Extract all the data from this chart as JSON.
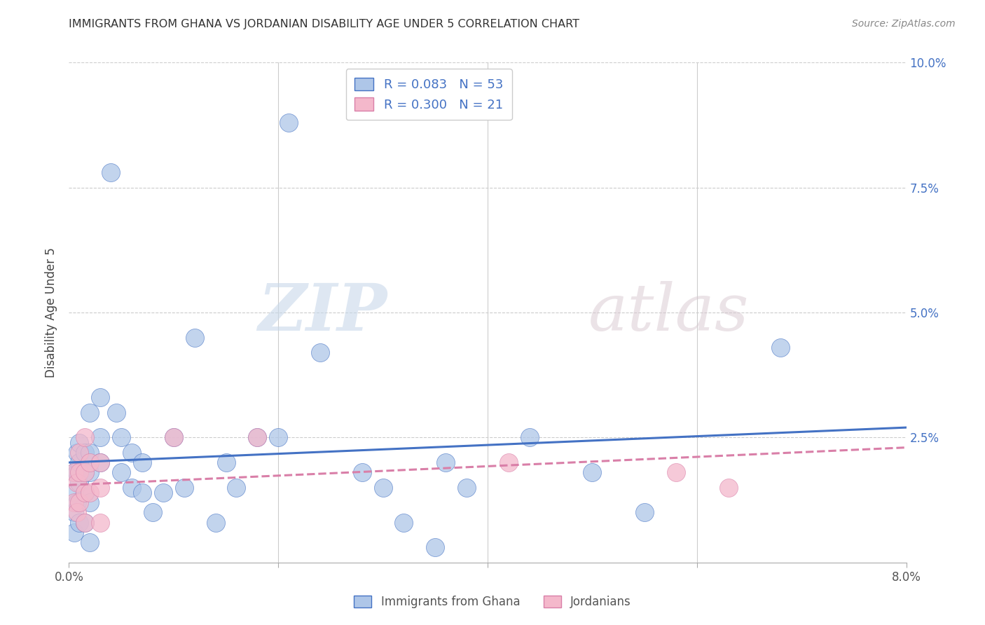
{
  "title": "IMMIGRANTS FROM GHANA VS JORDANIAN DISABILITY AGE UNDER 5 CORRELATION CHART",
  "source": "Source: ZipAtlas.com",
  "ylabel": "Disability Age Under 5",
  "xlim": [
    0.0,
    0.08
  ],
  "ylim": [
    0.0,
    0.1
  ],
  "xticks": [
    0.0,
    0.02,
    0.04,
    0.06,
    0.08
  ],
  "xtick_labels": [
    "0.0%",
    "",
    "",
    "",
    "8.0%"
  ],
  "yticks": [
    0.0,
    0.025,
    0.05,
    0.075,
    0.1
  ],
  "ytick_labels": [
    "",
    "2.5%",
    "5.0%",
    "7.5%",
    "10.0%"
  ],
  "ghana_color": "#aec6e8",
  "jordan_color": "#f4b8cb",
  "ghana_line_color": "#4472c4",
  "jordan_line_color": "#d97fa8",
  "ghana_R": 0.083,
  "ghana_N": 53,
  "jordan_R": 0.3,
  "jordan_N": 21,
  "watermark_zip": "ZIP",
  "watermark_atlas": "atlas",
  "ghana_line_x": [
    0.0,
    0.08
  ],
  "ghana_line_y": [
    0.02,
    0.027
  ],
  "jordan_line_x": [
    0.0,
    0.08
  ],
  "jordan_line_y": [
    0.0155,
    0.023
  ],
  "ghana_points": [
    [
      0.0005,
      0.006
    ],
    [
      0.0005,
      0.01
    ],
    [
      0.0005,
      0.014
    ],
    [
      0.0005,
      0.018
    ],
    [
      0.0008,
      0.022
    ],
    [
      0.0008,
      0.018
    ],
    [
      0.0008,
      0.012
    ],
    [
      0.001,
      0.02
    ],
    [
      0.001,
      0.016
    ],
    [
      0.001,
      0.024
    ],
    [
      0.001,
      0.008
    ],
    [
      0.0015,
      0.022
    ],
    [
      0.0015,
      0.018
    ],
    [
      0.0015,
      0.014
    ],
    [
      0.0015,
      0.008
    ],
    [
      0.002,
      0.03
    ],
    [
      0.002,
      0.022
    ],
    [
      0.002,
      0.018
    ],
    [
      0.002,
      0.012
    ],
    [
      0.002,
      0.004
    ],
    [
      0.003,
      0.033
    ],
    [
      0.003,
      0.025
    ],
    [
      0.003,
      0.02
    ],
    [
      0.004,
      0.078
    ],
    [
      0.0045,
      0.03
    ],
    [
      0.005,
      0.025
    ],
    [
      0.005,
      0.018
    ],
    [
      0.006,
      0.022
    ],
    [
      0.006,
      0.015
    ],
    [
      0.007,
      0.02
    ],
    [
      0.007,
      0.014
    ],
    [
      0.008,
      0.01
    ],
    [
      0.009,
      0.014
    ],
    [
      0.01,
      0.025
    ],
    [
      0.011,
      0.015
    ],
    [
      0.012,
      0.045
    ],
    [
      0.014,
      0.008
    ],
    [
      0.015,
      0.02
    ],
    [
      0.016,
      0.015
    ],
    [
      0.018,
      0.025
    ],
    [
      0.02,
      0.025
    ],
    [
      0.021,
      0.088
    ],
    [
      0.024,
      0.042
    ],
    [
      0.028,
      0.018
    ],
    [
      0.03,
      0.015
    ],
    [
      0.032,
      0.008
    ],
    [
      0.035,
      0.003
    ],
    [
      0.036,
      0.02
    ],
    [
      0.038,
      0.015
    ],
    [
      0.044,
      0.025
    ],
    [
      0.05,
      0.018
    ],
    [
      0.055,
      0.01
    ],
    [
      0.068,
      0.043
    ]
  ],
  "jordan_points": [
    [
      0.0005,
      0.012
    ],
    [
      0.0005,
      0.018
    ],
    [
      0.0008,
      0.01
    ],
    [
      0.0008,
      0.016
    ],
    [
      0.001,
      0.022
    ],
    [
      0.001,
      0.018
    ],
    [
      0.001,
      0.012
    ],
    [
      0.0015,
      0.025
    ],
    [
      0.0015,
      0.018
    ],
    [
      0.0015,
      0.014
    ],
    [
      0.0015,
      0.008
    ],
    [
      0.002,
      0.02
    ],
    [
      0.002,
      0.014
    ],
    [
      0.003,
      0.02
    ],
    [
      0.003,
      0.015
    ],
    [
      0.003,
      0.008
    ],
    [
      0.01,
      0.025
    ],
    [
      0.018,
      0.025
    ],
    [
      0.042,
      0.02
    ],
    [
      0.058,
      0.018
    ],
    [
      0.063,
      0.015
    ]
  ]
}
